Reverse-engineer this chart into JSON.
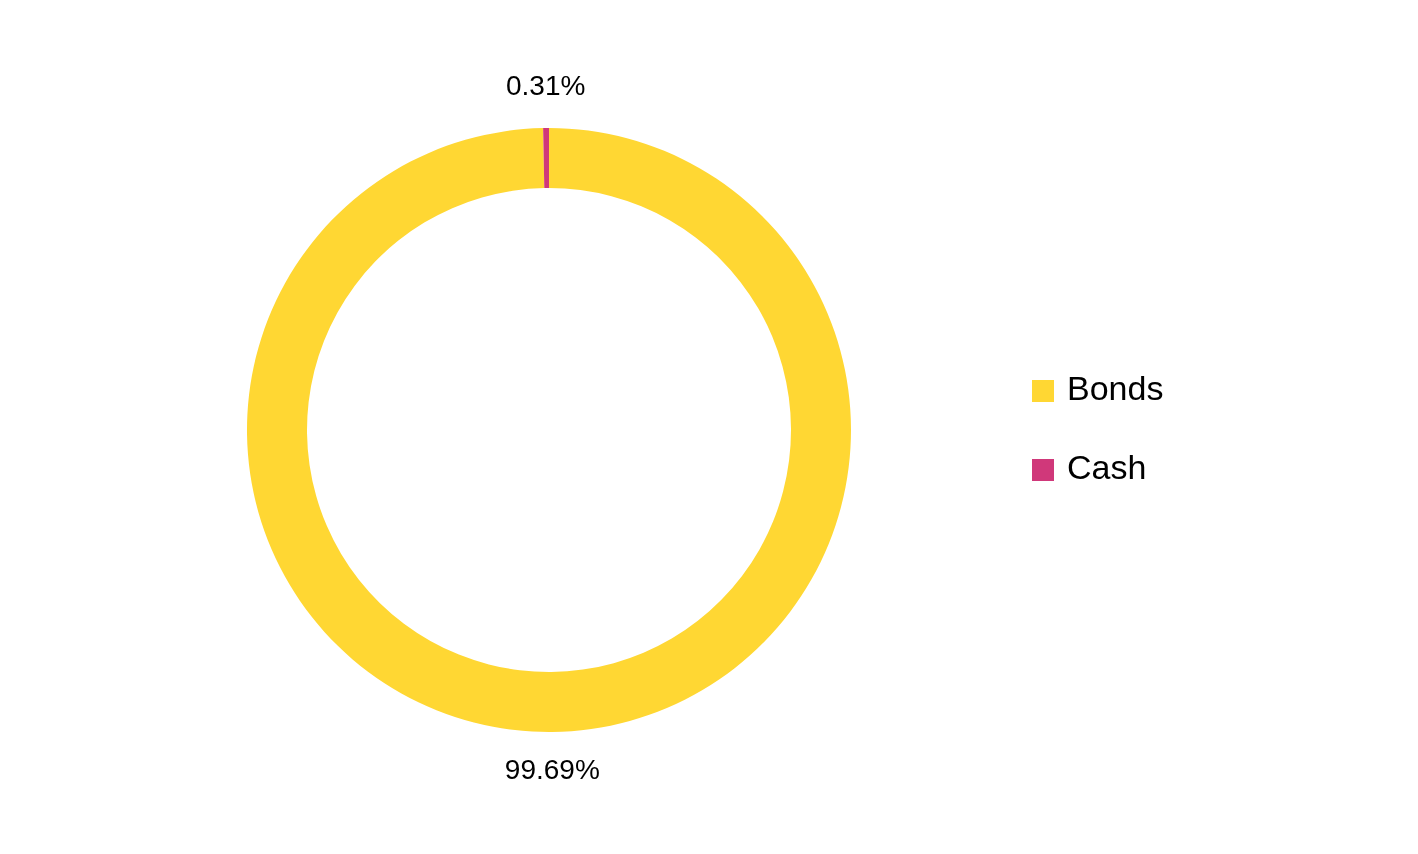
{
  "chart_data": {
    "type": "donut",
    "categories": [
      "Bonds",
      "Cash"
    ],
    "values": [
      99.69,
      0.31
    ],
    "colors": [
      "#ffd733",
      "#d0387a"
    ],
    "value_labels": [
      "99.69%",
      "0.31%"
    ],
    "legend": "right"
  }
}
